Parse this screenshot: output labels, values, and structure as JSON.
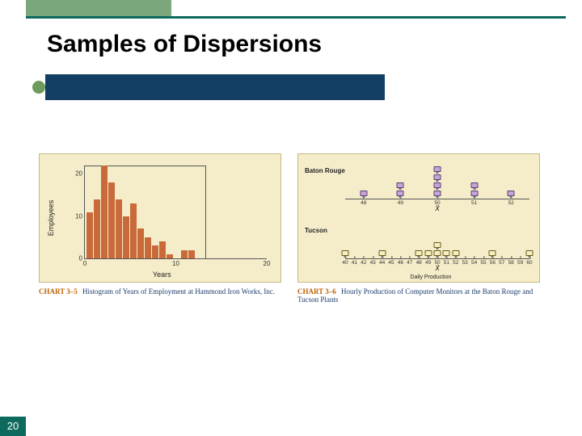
{
  "slide": {
    "title": "Samples of Dispersions",
    "page_number": "20",
    "accent_block_color": "#7aa77b",
    "top_border_color": "#0f6a5e",
    "bullet_bar_color": "#123f63",
    "bullet_dot_color": "#6f9a5e",
    "pagenum_bg": "#0f6a5e"
  },
  "histogram": {
    "type": "histogram",
    "panel_bg": "#f5edc9",
    "panel_border": "#c4b97f",
    "bar_color": "#c86a3a",
    "axis_color": "#555555",
    "ylabel": "Employees",
    "xlabel": "Years",
    "ylim": [
      0,
      22
    ],
    "yticks": [
      0,
      10,
      20
    ],
    "xlim": [
      0,
      20
    ],
    "xticks": [
      0,
      10,
      20
    ],
    "bar_width_years": 1,
    "bars": [
      {
        "x": 0,
        "y": 11
      },
      {
        "x": 1,
        "y": 14
      },
      {
        "x": 2,
        "y": 22
      },
      {
        "x": 3,
        "y": 18
      },
      {
        "x": 4,
        "y": 14
      },
      {
        "x": 5,
        "y": 10
      },
      {
        "x": 6,
        "y": 13
      },
      {
        "x": 7,
        "y": 7
      },
      {
        "x": 8,
        "y": 5
      },
      {
        "x": 9,
        "y": 3
      },
      {
        "x": 10,
        "y": 4
      },
      {
        "x": 11,
        "y": 1
      },
      {
        "x": 12,
        "y": 0
      },
      {
        "x": 13,
        "y": 2
      },
      {
        "x": 14,
        "y": 2
      }
    ],
    "caption_num": "CHART 3–5",
    "caption_text": "Histogram of Years of Employment at Hammond Iron Works, Inc."
  },
  "dotplots": {
    "type": "dotplot-pair",
    "panel_bg": "#f5edc9",
    "panel_border": "#c4b97f",
    "axis_color": "#555555",
    "xlabel": "Daily Production",
    "xbar_label_top": "X̄",
    "xbar_label_bot": "X̄",
    "top": {
      "label": "Baton Rouge",
      "marker_fill": "#c6a4d8",
      "marker_border": "#5a3d72",
      "xlim": [
        47.5,
        52.5
      ],
      "xticks": [
        48,
        49,
        50,
        51,
        52
      ],
      "points": [
        {
          "x": 48,
          "count": 1
        },
        {
          "x": 49,
          "count": 2
        },
        {
          "x": 50,
          "count": 4
        },
        {
          "x": 51,
          "count": 2
        },
        {
          "x": 52,
          "count": 1
        }
      ],
      "xbar": 50
    },
    "bottom": {
      "label": "Tucson",
      "marker_fill": "#f4eec0",
      "marker_border": "#6a5a1a",
      "xlim": [
        40,
        60
      ],
      "xticks": [
        40,
        41,
        42,
        43,
        44,
        45,
        46,
        47,
        48,
        49,
        50,
        51,
        52,
        53,
        54,
        55,
        56,
        57,
        58,
        59,
        60
      ],
      "points": [
        {
          "x": 40,
          "count": 1
        },
        {
          "x": 44,
          "count": 1
        },
        {
          "x": 48,
          "count": 1
        },
        {
          "x": 49,
          "count": 1
        },
        {
          "x": 50,
          "count": 2
        },
        {
          "x": 51,
          "count": 1
        },
        {
          "x": 52,
          "count": 1
        },
        {
          "x": 56,
          "count": 1
        },
        {
          "x": 60,
          "count": 1
        }
      ],
      "xbar": 50
    },
    "caption_num": "CHART 3–6",
    "caption_text": "Hourly Production of Computer Monitors at the Baton Rouge and Tucson Plants"
  }
}
